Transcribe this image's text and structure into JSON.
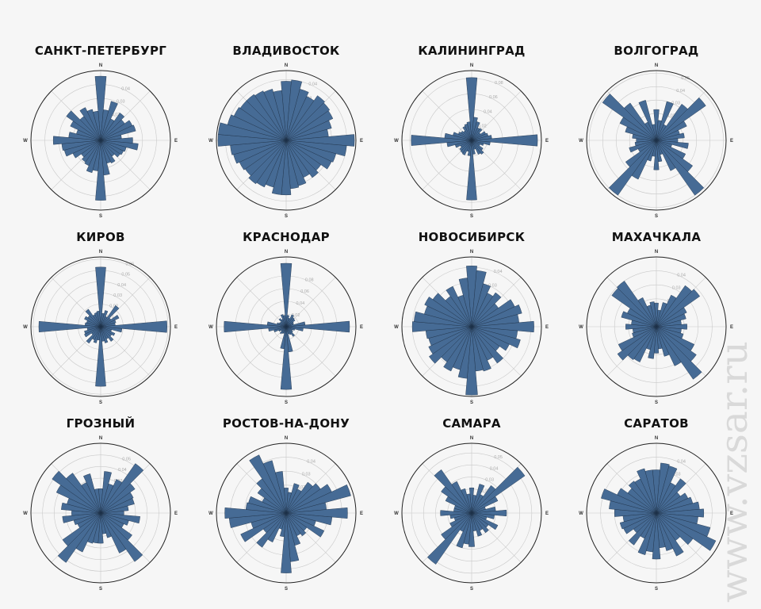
{
  "watermark_text": "www.vzsar.ru",
  "compass": {
    "n": "N",
    "e": "E",
    "s": "S",
    "w": "W"
  },
  "colors": {
    "bar": "#466b95",
    "bar_edge": "#1c2e45",
    "grid": "#c9c9c9",
    "outer_circle": "#222222",
    "tick_label": "#aaaaaa",
    "watermark": "#d9d9d9"
  },
  "chart_data": [
    {
      "type": "polar-bar",
      "title": "САНКТ-ПЕТЕРБУРГ",
      "rmax": 0.05,
      "ticks": [
        "0.01",
        "0.02",
        "0.03",
        "0.04"
      ],
      "directions": 36,
      "values": [
        0.046,
        0.022,
        0.029,
        0.017,
        0.024,
        0.021,
        0.025,
        0.026,
        0.015,
        0.023,
        0.027,
        0.019,
        0.018,
        0.017,
        0.014,
        0.018,
        0.017,
        0.025,
        0.043,
        0.022,
        0.024,
        0.02,
        0.019,
        0.017,
        0.022,
        0.027,
        0.028,
        0.034,
        0.023,
        0.018,
        0.024,
        0.03,
        0.021,
        0.026,
        0.023,
        0.021
      ]
    },
    {
      "type": "polar-bar",
      "title": "ВЛАДИВОСТОК",
      "rmax": 0.046,
      "ticks": [
        "0.01",
        "0.02",
        "0.03",
        "0.04"
      ],
      "directions": 36,
      "values": [
        0.039,
        0.04,
        0.035,
        0.032,
        0.036,
        0.035,
        0.034,
        0.031,
        0.028,
        0.045,
        0.04,
        0.034,
        0.033,
        0.028,
        0.03,
        0.027,
        0.031,
        0.032,
        0.036,
        0.036,
        0.032,
        0.034,
        0.035,
        0.033,
        0.034,
        0.036,
        0.037,
        0.045,
        0.045,
        0.04,
        0.038,
        0.037,
        0.037,
        0.036,
        0.035,
        0.033
      ]
    },
    {
      "type": "polar-bar",
      "title": "КАЛИНИНГРАД",
      "rmax": 0.09,
      "ticks": [
        "0.02",
        "0.04",
        "0.06",
        "0.08"
      ],
      "directions": 36,
      "values": [
        0.081,
        0.03,
        0.025,
        0.018,
        0.019,
        0.014,
        0.02,
        0.022,
        0.026,
        0.085,
        0.024,
        0.016,
        0.012,
        0.018,
        0.022,
        0.02,
        0.012,
        0.018,
        0.077,
        0.02,
        0.015,
        0.021,
        0.02,
        0.019,
        0.016,
        0.022,
        0.032,
        0.078,
        0.035,
        0.025,
        0.019,
        0.017,
        0.015,
        0.02,
        0.022,
        0.024
      ]
    },
    {
      "type": "polar-bar",
      "title": "ВОЛГОГРАД",
      "rmax": 0.052,
      "ticks": [
        "0.01",
        "0.02",
        "0.03",
        "0.04",
        "0.05"
      ],
      "directions": 36,
      "values": [
        0.023,
        0.015,
        0.03,
        0.013,
        0.033,
        0.045,
        0.025,
        0.018,
        0.021,
        0.016,
        0.024,
        0.012,
        0.024,
        0.033,
        0.05,
        0.025,
        0.011,
        0.016,
        0.022,
        0.012,
        0.016,
        0.032,
        0.05,
        0.028,
        0.015,
        0.021,
        0.016,
        0.015,
        0.018,
        0.024,
        0.03,
        0.049,
        0.034,
        0.015,
        0.031,
        0.012
      ]
    },
    {
      "type": "polar-bar",
      "title": "КИРОВ",
      "rmax": 0.062,
      "ticks": [
        "0.01",
        "0.02",
        "0.03",
        "0.04",
        "0.05",
        "0.06"
      ],
      "directions": 36,
      "values": [
        0.053,
        0.012,
        0.015,
        0.01,
        0.023,
        0.011,
        0.018,
        0.014,
        0.013,
        0.059,
        0.019,
        0.01,
        0.014,
        0.012,
        0.016,
        0.012,
        0.015,
        0.013,
        0.053,
        0.012,
        0.015,
        0.013,
        0.018,
        0.01,
        0.016,
        0.015,
        0.012,
        0.055,
        0.014,
        0.013,
        0.016,
        0.014,
        0.019,
        0.012,
        0.013,
        0.014
      ]
    },
    {
      "type": "polar-bar",
      "title": "КРАСНОДАР",
      "rmax": 0.11,
      "ticks": [
        "0.02",
        "0.04",
        "0.06",
        "0.08"
      ],
      "directions": 36,
      "values": [
        0.1,
        0.018,
        0.014,
        0.021,
        0.018,
        0.017,
        0.013,
        0.012,
        0.03,
        0.1,
        0.027,
        0.014,
        0.011,
        0.013,
        0.019,
        0.014,
        0.012,
        0.04,
        0.099,
        0.035,
        0.011,
        0.012,
        0.014,
        0.01,
        0.013,
        0.02,
        0.028,
        0.098,
        0.03,
        0.015,
        0.012,
        0.011,
        0.016,
        0.013,
        0.02,
        0.018
      ]
    },
    {
      "type": "polar-bar",
      "title": "НОВОСИБИРСК",
      "rmax": 0.047,
      "ticks": [
        "0.01",
        "0.02",
        "0.03",
        "0.04"
      ],
      "directions": 36,
      "values": [
        0.041,
        0.038,
        0.03,
        0.025,
        0.028,
        0.022,
        0.032,
        0.035,
        0.032,
        0.042,
        0.031,
        0.034,
        0.028,
        0.023,
        0.03,
        0.025,
        0.031,
        0.03,
        0.046,
        0.035,
        0.03,
        0.033,
        0.029,
        0.035,
        0.032,
        0.03,
        0.031,
        0.04,
        0.039,
        0.033,
        0.035,
        0.032,
        0.025,
        0.03,
        0.022,
        0.033
      ]
    },
    {
      "type": "polar-bar",
      "title": "МАХАЧКАЛА",
      "rmax": 0.05,
      "ticks": [
        "0.01",
        "0.02",
        "0.03",
        "0.04"
      ],
      "directions": 36,
      "values": [
        0.017,
        0.012,
        0.018,
        0.025,
        0.036,
        0.038,
        0.024,
        0.022,
        0.018,
        0.022,
        0.018,
        0.02,
        0.03,
        0.035,
        0.046,
        0.031,
        0.022,
        0.016,
        0.019,
        0.023,
        0.017,
        0.028,
        0.029,
        0.034,
        0.03,
        0.018,
        0.017,
        0.022,
        0.018,
        0.026,
        0.023,
        0.039,
        0.04,
        0.023,
        0.016,
        0.018
      ]
    },
    {
      "type": "polar-bar",
      "title": "ГРОЗНЫЙ",
      "rmax": 0.06,
      "ticks": [
        "0.01",
        "0.02",
        "0.03",
        "0.04",
        "0.05"
      ],
      "directions": 36,
      "values": [
        0.021,
        0.036,
        0.026,
        0.032,
        0.052,
        0.036,
        0.031,
        0.03,
        0.024,
        0.02,
        0.034,
        0.025,
        0.022,
        0.033,
        0.051,
        0.038,
        0.022,
        0.018,
        0.026,
        0.026,
        0.027,
        0.037,
        0.052,
        0.04,
        0.022,
        0.024,
        0.033,
        0.025,
        0.034,
        0.03,
        0.042,
        0.051,
        0.042,
        0.029,
        0.035,
        0.021
      ]
    },
    {
      "type": "polar-bar",
      "title": "РОСТОВ-НА-ДОНУ",
      "rmax": 0.05,
      "ticks": [
        "0.01",
        "0.02",
        "0.03",
        "0.04"
      ],
      "directions": 36,
      "values": [
        0.018,
        0.015,
        0.022,
        0.019,
        0.027,
        0.03,
        0.036,
        0.048,
        0.029,
        0.044,
        0.033,
        0.022,
        0.03,
        0.018,
        0.02,
        0.018,
        0.024,
        0.035,
        0.043,
        0.017,
        0.012,
        0.023,
        0.03,
        0.02,
        0.036,
        0.026,
        0.041,
        0.044,
        0.029,
        0.028,
        0.019,
        0.025,
        0.03,
        0.046,
        0.039,
        0.03
      ]
    },
    {
      "type": "polar-bar",
      "title": "САМАРА",
      "rmax": 0.058,
      "ticks": [
        "0.01",
        "0.02",
        "0.03",
        "0.04",
        "0.05"
      ],
      "directions": 36,
      "values": [
        0.021,
        0.015,
        0.025,
        0.017,
        0.028,
        0.054,
        0.024,
        0.012,
        0.02,
        0.029,
        0.019,
        0.013,
        0.024,
        0.017,
        0.02,
        0.016,
        0.02,
        0.015,
        0.028,
        0.026,
        0.03,
        0.017,
        0.052,
        0.031,
        0.02,
        0.015,
        0.018,
        0.026,
        0.015,
        0.015,
        0.024,
        0.031,
        0.044,
        0.029,
        0.021,
        0.016
      ]
    },
    {
      "type": "polar-bar",
      "title": "САРАТОВ",
      "rmax": 0.05,
      "ticks": [
        "0.01",
        "0.02",
        "0.03",
        "0.04"
      ],
      "directions": 36,
      "values": [
        0.031,
        0.036,
        0.035,
        0.024,
        0.03,
        0.021,
        0.025,
        0.027,
        0.031,
        0.034,
        0.03,
        0.04,
        0.047,
        0.032,
        0.024,
        0.034,
        0.028,
        0.025,
        0.033,
        0.028,
        0.031,
        0.02,
        0.028,
        0.02,
        0.026,
        0.027,
        0.024,
        0.03,
        0.034,
        0.041,
        0.031,
        0.025,
        0.028,
        0.027,
        0.033,
        0.031
      ]
    }
  ]
}
